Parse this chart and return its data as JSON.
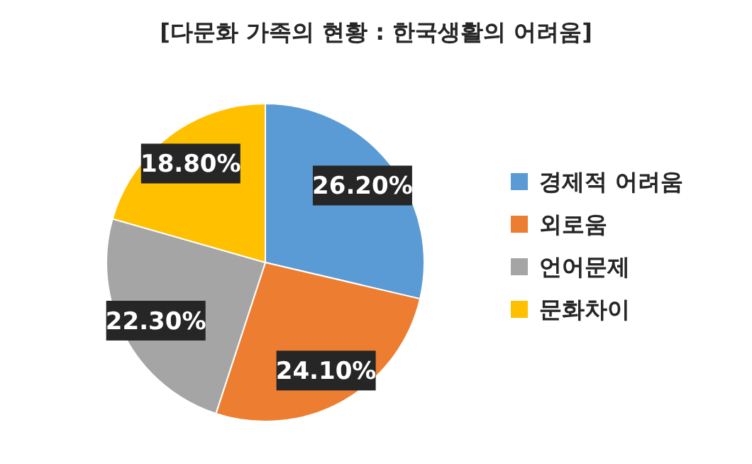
{
  "chart_data": {
    "type": "pie",
    "title": "[다문화 가족의 현황 : 한국생활의 어려움]",
    "categories": [
      "경제적 어려움",
      "외로움",
      "언어문제",
      "문화차이"
    ],
    "values": [
      26.2,
      24.1,
      22.3,
      18.8
    ],
    "value_labels": [
      "26.20%",
      "24.10%",
      "22.30%",
      "18.80%"
    ],
    "colors": [
      "#5b9bd5",
      "#ed7d31",
      "#a5a5a5",
      "#ffc000"
    ],
    "legend": "right"
  }
}
